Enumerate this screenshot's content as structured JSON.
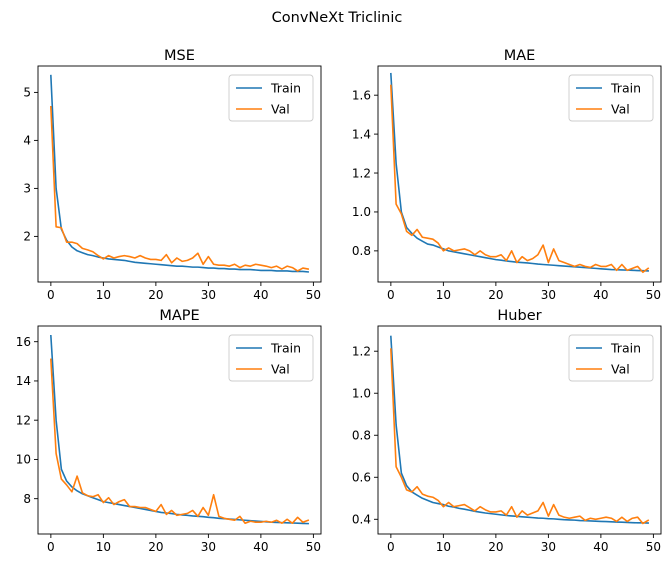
{
  "figure": {
    "title": "ConvNeXt Triclinic"
  },
  "colors": {
    "train": "#1f77b4",
    "val": "#ff7f0e",
    "axes": "#000000",
    "legend_border": "#cccccc"
  },
  "chart_data": [
    {
      "type": "line",
      "title": "MSE",
      "xlabel": "",
      "ylabel": "",
      "legend": "top-right",
      "grid": false,
      "xlim": [
        -2.45,
        51.45
      ],
      "ylim": [
        1.05,
        5.55
      ],
      "xticks": [
        0,
        10,
        20,
        30,
        40,
        50
      ],
      "xtick_labels": [
        "0",
        "10",
        "20",
        "30",
        "40",
        "50"
      ],
      "yticks": [
        2,
        3,
        4,
        5
      ],
      "ytick_labels": [
        "2",
        "3",
        "4",
        "5"
      ],
      "x": [
        0,
        1,
        2,
        3,
        4,
        5,
        6,
        7,
        8,
        9,
        10,
        11,
        12,
        13,
        14,
        15,
        16,
        17,
        18,
        19,
        20,
        21,
        22,
        23,
        24,
        25,
        26,
        27,
        28,
        29,
        30,
        31,
        32,
        33,
        34,
        35,
        36,
        37,
        38,
        39,
        40,
        41,
        42,
        43,
        44,
        45,
        46,
        47,
        48,
        49
      ],
      "series": [
        {
          "name": "Train",
          "values": [
            5.35,
            3.0,
            2.15,
            1.92,
            1.78,
            1.7,
            1.66,
            1.62,
            1.6,
            1.57,
            1.55,
            1.53,
            1.52,
            1.51,
            1.5,
            1.48,
            1.46,
            1.45,
            1.44,
            1.43,
            1.42,
            1.41,
            1.4,
            1.39,
            1.38,
            1.38,
            1.37,
            1.36,
            1.36,
            1.35,
            1.34,
            1.34,
            1.33,
            1.33,
            1.32,
            1.32,
            1.31,
            1.31,
            1.31,
            1.3,
            1.29,
            1.29,
            1.29,
            1.28,
            1.28,
            1.28,
            1.27,
            1.27,
            1.27,
            1.26
          ]
        },
        {
          "name": "Val",
          "values": [
            4.7,
            2.2,
            2.18,
            1.88,
            1.88,
            1.85,
            1.75,
            1.72,
            1.68,
            1.6,
            1.53,
            1.6,
            1.55,
            1.58,
            1.6,
            1.58,
            1.55,
            1.6,
            1.55,
            1.52,
            1.52,
            1.5,
            1.62,
            1.45,
            1.55,
            1.48,
            1.5,
            1.55,
            1.65,
            1.42,
            1.58,
            1.42,
            1.4,
            1.4,
            1.38,
            1.42,
            1.35,
            1.4,
            1.38,
            1.42,
            1.4,
            1.38,
            1.35,
            1.38,
            1.32,
            1.38,
            1.35,
            1.28,
            1.34,
            1.32
          ]
        }
      ]
    },
    {
      "type": "line",
      "title": "MAE",
      "xlabel": "",
      "ylabel": "",
      "legend": "top-right",
      "grid": false,
      "xlim": [
        -2.45,
        51.45
      ],
      "ylim": [
        0.64,
        1.75
      ],
      "xticks": [
        0,
        10,
        20,
        30,
        40,
        50
      ],
      "xtick_labels": [
        "0",
        "10",
        "20",
        "30",
        "40",
        "50"
      ],
      "yticks": [
        0.8,
        1.0,
        1.2,
        1.4,
        1.6
      ],
      "ytick_labels": [
        "0.8",
        "1.0",
        "1.2",
        "1.4",
        "1.6"
      ],
      "x": [
        0,
        1,
        2,
        3,
        4,
        5,
        6,
        7,
        8,
        9,
        10,
        11,
        12,
        13,
        14,
        15,
        16,
        17,
        18,
        19,
        20,
        21,
        22,
        23,
        24,
        25,
        26,
        27,
        28,
        29,
        30,
        31,
        32,
        33,
        34,
        35,
        36,
        37,
        38,
        39,
        40,
        41,
        42,
        43,
        44,
        45,
        46,
        47,
        48,
        49
      ],
      "series": [
        {
          "name": "Train",
          "values": [
            1.71,
            1.25,
            1.0,
            0.92,
            0.89,
            0.865,
            0.85,
            0.835,
            0.83,
            0.82,
            0.81,
            0.8,
            0.795,
            0.79,
            0.785,
            0.78,
            0.775,
            0.77,
            0.765,
            0.76,
            0.755,
            0.752,
            0.748,
            0.745,
            0.742,
            0.74,
            0.738,
            0.735,
            0.732,
            0.73,
            0.728,
            0.726,
            0.724,
            0.722,
            0.72,
            0.718,
            0.716,
            0.714,
            0.712,
            0.71,
            0.708,
            0.706,
            0.704,
            0.703,
            0.702,
            0.701,
            0.7,
            0.699,
            0.698,
            0.697
          ]
        },
        {
          "name": "Val",
          "values": [
            1.65,
            1.04,
            0.99,
            0.9,
            0.88,
            0.91,
            0.87,
            0.865,
            0.86,
            0.84,
            0.8,
            0.815,
            0.8,
            0.805,
            0.81,
            0.8,
            0.78,
            0.8,
            0.78,
            0.77,
            0.77,
            0.78,
            0.75,
            0.8,
            0.74,
            0.77,
            0.75,
            0.76,
            0.78,
            0.83,
            0.74,
            0.81,
            0.75,
            0.74,
            0.73,
            0.72,
            0.73,
            0.72,
            0.715,
            0.73,
            0.72,
            0.72,
            0.73,
            0.7,
            0.73,
            0.7,
            0.71,
            0.72,
            0.69,
            0.71
          ]
        }
      ]
    },
    {
      "type": "line",
      "title": "MAPE",
      "xlabel": "",
      "ylabel": "",
      "legend": "top-right",
      "grid": false,
      "xlim": [
        -2.45,
        51.45
      ],
      "ylim": [
        6.2,
        16.8
      ],
      "xticks": [
        0,
        10,
        20,
        30,
        40,
        50
      ],
      "xtick_labels": [
        "0",
        "10",
        "20",
        "30",
        "40",
        "50"
      ],
      "yticks": [
        8,
        10,
        12,
        14,
        16
      ],
      "ytick_labels": [
        "8",
        "10",
        "12",
        "14",
        "16"
      ],
      "x": [
        0,
        1,
        2,
        3,
        4,
        5,
        6,
        7,
        8,
        9,
        10,
        11,
        12,
        13,
        14,
        15,
        16,
        17,
        18,
        19,
        20,
        21,
        22,
        23,
        24,
        25,
        26,
        27,
        28,
        29,
        30,
        31,
        32,
        33,
        34,
        35,
        36,
        37,
        38,
        39,
        40,
        41,
        42,
        43,
        44,
        45,
        46,
        47,
        48,
        49
      ],
      "series": [
        {
          "name": "Train",
          "values": [
            16.3,
            12.0,
            9.5,
            8.9,
            8.6,
            8.4,
            8.25,
            8.15,
            8.05,
            7.95,
            7.85,
            7.8,
            7.75,
            7.7,
            7.65,
            7.6,
            7.55,
            7.5,
            7.45,
            7.4,
            7.35,
            7.3,
            7.27,
            7.24,
            7.2,
            7.17,
            7.15,
            7.12,
            7.1,
            7.08,
            7.05,
            7.03,
            7.0,
            6.98,
            6.96,
            6.94,
            6.92,
            6.9,
            6.88,
            6.86,
            6.84,
            6.82,
            6.8,
            6.79,
            6.78,
            6.77,
            6.76,
            6.75,
            6.74,
            6.73
          ]
        },
        {
          "name": "Val",
          "values": [
            15.1,
            10.3,
            9.0,
            8.7,
            8.35,
            9.15,
            8.3,
            8.15,
            8.1,
            8.2,
            7.8,
            8.05,
            7.7,
            7.85,
            7.95,
            7.6,
            7.6,
            7.55,
            7.55,
            7.45,
            7.35,
            7.7,
            7.2,
            7.4,
            7.15,
            7.2,
            7.25,
            7.4,
            7.1,
            7.55,
            7.15,
            8.2,
            7.1,
            7.0,
            6.95,
            6.9,
            7.1,
            6.75,
            6.85,
            6.8,
            6.8,
            6.85,
            6.8,
            6.9,
            6.75,
            6.95,
            6.75,
            7.05,
            6.8,
            6.9
          ]
        }
      ]
    },
    {
      "type": "line",
      "title": "Huber",
      "xlabel": "",
      "ylabel": "",
      "legend": "top-right",
      "grid": false,
      "xlim": [
        -2.45,
        51.45
      ],
      "ylim": [
        0.33,
        1.32
      ],
      "xticks": [
        0,
        10,
        20,
        30,
        40,
        50
      ],
      "xtick_labels": [
        "0",
        "10",
        "20",
        "30",
        "40",
        "50"
      ],
      "yticks": [
        0.4,
        0.6,
        0.8,
        1.0,
        1.2
      ],
      "ytick_labels": [
        "0.4",
        "0.6",
        "0.8",
        "1.0",
        "1.2"
      ],
      "x": [
        0,
        1,
        2,
        3,
        4,
        5,
        6,
        7,
        8,
        9,
        10,
        11,
        12,
        13,
        14,
        15,
        16,
        17,
        18,
        19,
        20,
        21,
        22,
        23,
        24,
        25,
        26,
        27,
        28,
        29,
        30,
        31,
        32,
        33,
        34,
        35,
        36,
        37,
        38,
        39,
        40,
        41,
        42,
        43,
        44,
        45,
        46,
        47,
        48,
        49
      ],
      "series": [
        {
          "name": "Train",
          "values": [
            1.27,
            0.85,
            0.62,
            0.56,
            0.53,
            0.515,
            0.5,
            0.49,
            0.48,
            0.475,
            0.47,
            0.462,
            0.458,
            0.452,
            0.448,
            0.443,
            0.438,
            0.434,
            0.43,
            0.427,
            0.424,
            0.421,
            0.418,
            0.416,
            0.414,
            0.412,
            0.41,
            0.408,
            0.406,
            0.405,
            0.403,
            0.402,
            0.4,
            0.398,
            0.397,
            0.396,
            0.394,
            0.393,
            0.392,
            0.391,
            0.39,
            0.389,
            0.388,
            0.387,
            0.386,
            0.385,
            0.384,
            0.383,
            0.383,
            0.382
          ]
        },
        {
          "name": "Val",
          "values": [
            1.21,
            0.65,
            0.6,
            0.54,
            0.53,
            0.555,
            0.52,
            0.51,
            0.505,
            0.49,
            0.46,
            0.48,
            0.46,
            0.465,
            0.47,
            0.455,
            0.44,
            0.46,
            0.445,
            0.435,
            0.435,
            0.44,
            0.42,
            0.46,
            0.41,
            0.44,
            0.42,
            0.43,
            0.44,
            0.48,
            0.415,
            0.47,
            0.42,
            0.41,
            0.405,
            0.41,
            0.415,
            0.395,
            0.405,
            0.4,
            0.405,
            0.41,
            0.405,
            0.39,
            0.41,
            0.39,
            0.405,
            0.41,
            0.38,
            0.395
          ]
        }
      ]
    }
  ]
}
